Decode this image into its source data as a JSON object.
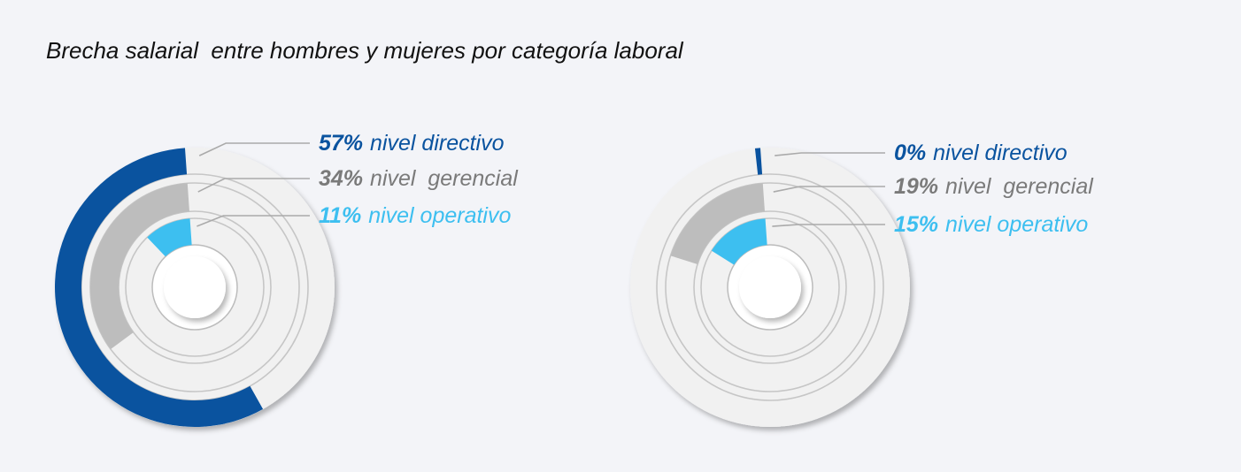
{
  "title": "Brecha salarial  entre hombres y mujeres por categoría laboral",
  "colors": {
    "directivo": "#0a539f",
    "gerencial": "#bdbdbd",
    "operativo": "#3dbff0",
    "track": "#f1f1f1",
    "ring_line": "#c6c6c6",
    "leader": "#aaaaaa",
    "gerencial_label": "#7a7a7a"
  },
  "chart_data": [
    {
      "type": "pie",
      "series": [
        {
          "key": "directivo",
          "percent_label": "57%",
          "label": "nivel directivo",
          "value": 57
        },
        {
          "key": "gerencial",
          "percent_label": "34%",
          "label": "nivel  gerencial",
          "value": 34
        },
        {
          "key": "operativo",
          "percent_label": "11%",
          "label": "nivel operativo",
          "value": 11
        }
      ]
    },
    {
      "type": "pie",
      "series": [
        {
          "key": "directivo",
          "percent_label": "0%",
          "label": "nivel directivo",
          "value": 0
        },
        {
          "key": "gerencial",
          "percent_label": "19%",
          "label": "nivel  gerencial",
          "value": 19
        },
        {
          "key": "operativo",
          "percent_label": "15%",
          "label": "nivel operativo",
          "value": 15
        }
      ]
    }
  ]
}
